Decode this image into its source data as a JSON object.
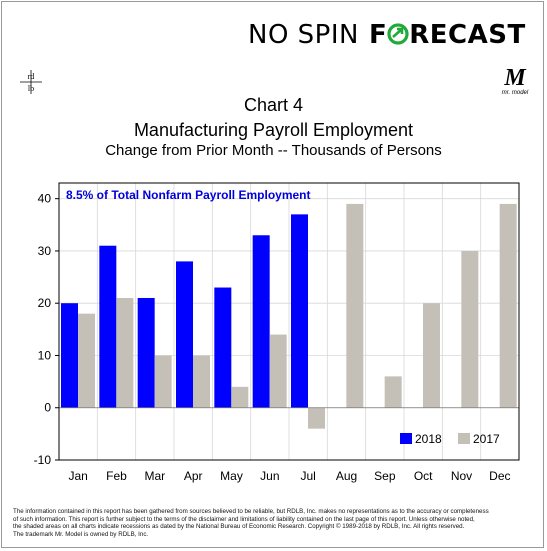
{
  "brand": {
    "left": "NO SPIN",
    "right": "FORECAST"
  },
  "logo_left": {
    "top": "rd",
    "bottom": "lb"
  },
  "logo_right": {
    "letter": "M",
    "caption": "mr. model"
  },
  "header": {
    "chart_number": "Chart 4",
    "title": "Manufacturing Payroll Employment",
    "subtitle": "Change from Prior Month -- Thousands of Persons"
  },
  "colors": {
    "series_2018": "#0000ff",
    "series_2017": "#c4c0b8",
    "annotation": "#0000dd",
    "arrow": "#1faa3a"
  },
  "chart_data": {
    "type": "bar",
    "annotation": "8.5% of Total Nonfarm Payroll Employment",
    "categories": [
      "Jan",
      "Feb",
      "Mar",
      "Apr",
      "May",
      "Jun",
      "Jul",
      "Aug",
      "Sep",
      "Oct",
      "Nov",
      "Dec"
    ],
    "series": [
      {
        "name": "2018",
        "values": [
          20,
          31,
          21,
          28,
          23,
          33,
          37,
          null,
          null,
          null,
          null,
          null
        ]
      },
      {
        "name": "2017",
        "values": [
          18,
          21,
          10,
          10,
          4,
          14,
          -4,
          39,
          6,
          20,
          30,
          39
        ]
      }
    ],
    "ylim": [
      -10,
      43
    ],
    "yticks": [
      "-10",
      "0",
      "10",
      "20",
      "30",
      "40"
    ],
    "grid": true,
    "legend": "bottom-right"
  },
  "footer": {
    "lines": [
      "The information contained in this report has been gathered from sources believed to be reliable, but RDLB, Inc. makes no representations as to the accuracy or completeness",
      "of such information. This report is further subject to the terms of the disclaimer and limitations of liability contained on the last page of this report. Unless otherwise noted,",
      "the shaded areas on all charts indicate recessions as dated by the National Bureau of Economic Research. Copyright © 1989-2018 by RDLB, Inc. All rights reserved.",
      "The trademark Mr. Model is owned by RDLB, Inc."
    ]
  }
}
